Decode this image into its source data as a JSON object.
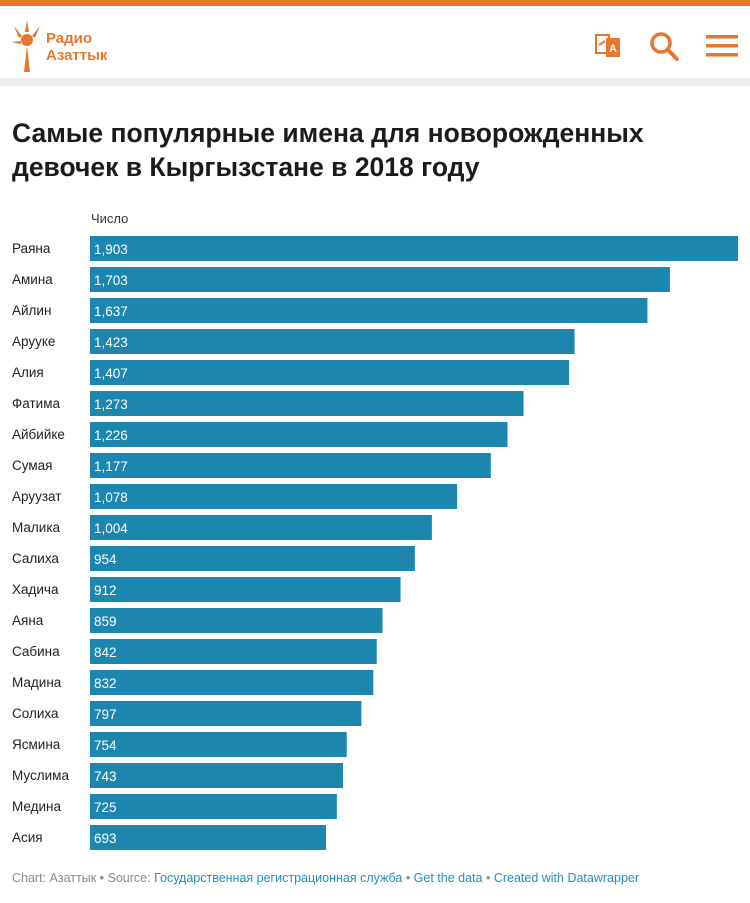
{
  "colors": {
    "brand": "#e8772e",
    "bar": "#1c86ae",
    "link": "#1f8fc1",
    "footer_text": "#8a8a8a"
  },
  "header": {
    "logo_line1": "Радио",
    "logo_line2": "Азаттык",
    "icons": [
      "translate-icon",
      "search-icon",
      "menu-icon"
    ]
  },
  "title": "Самые популярные имена для новорожденных девочек в Кыргызстане в 2018 году",
  "chart_data": {
    "type": "bar",
    "orientation": "horizontal",
    "value_header": "Число",
    "categories": [
      "Раяна",
      "Амина",
      "Айлин",
      "Арууке",
      "Алия",
      "Фатима",
      "Айбийке",
      "Сумая",
      "Аруузат",
      "Малика",
      "Салиха",
      "Хадича",
      "Аяна",
      "Сабина",
      "Мадина",
      "Солиха",
      "Ясмина",
      "Муслима",
      "Медина",
      "Асия"
    ],
    "values": [
      1903,
      1703,
      1637,
      1423,
      1407,
      1273,
      1226,
      1177,
      1078,
      1004,
      954,
      912,
      859,
      842,
      832,
      797,
      754,
      743,
      725,
      693
    ],
    "value_labels": [
      "1,903",
      "1,703",
      "1,637",
      "1,423",
      "1,407",
      "1,273",
      "1,226",
      "1,177",
      "1,078",
      "1,004",
      "954",
      "912",
      "859",
      "842",
      "832",
      "797",
      "754",
      "743",
      "725",
      "693"
    ],
    "xlim": [
      0,
      1903
    ],
    "grid": false,
    "legend": "none"
  },
  "footer": {
    "prefix": "Chart: Азаттык",
    "sep": " • ",
    "source_label": "Source: ",
    "source_link": "Государственная регистрационная служба",
    "get_data": "Get the data",
    "created_with": "Created with Datawrapper"
  }
}
